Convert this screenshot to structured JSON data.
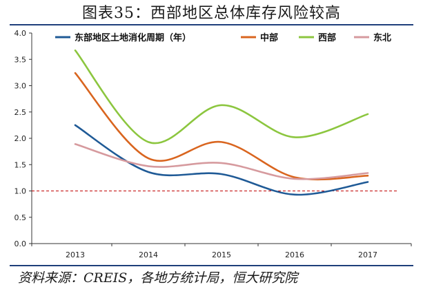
{
  "header": {
    "title": "图表35：西部地区总体库存风险较高"
  },
  "footer": {
    "source": "资料来源：CREIS，各地方统计局，恒大研究院"
  },
  "colors": {
    "rule": "#1e3e7a",
    "reference_line": "#c00000"
  },
  "chart_data": {
    "type": "line",
    "x": [
      "2013",
      "2014",
      "2015",
      "2016",
      "2017"
    ],
    "ylim": [
      0,
      4.0
    ],
    "yticks": [
      "0.0",
      "0.5",
      "1.0",
      "1.5",
      "2.0",
      "2.5",
      "3.0",
      "3.5",
      "4.0"
    ],
    "reference_line": 1.0,
    "smooth": true,
    "legend_position": "top",
    "series": [
      {
        "name": "东部地区土地消化周期（年）",
        "color": "#1f5a96",
        "values": [
          2.25,
          1.36,
          1.32,
          0.93,
          1.17
        ]
      },
      {
        "name": "中部",
        "color": "#d9651f",
        "values": [
          3.24,
          1.62,
          1.93,
          1.26,
          1.29
        ]
      },
      {
        "name": "西部",
        "color": "#8cc63f",
        "values": [
          3.67,
          1.93,
          2.63,
          2.02,
          2.46
        ]
      },
      {
        "name": "东北",
        "color": "#d69a9e",
        "values": [
          1.89,
          1.47,
          1.53,
          1.23,
          1.34
        ]
      }
    ]
  }
}
